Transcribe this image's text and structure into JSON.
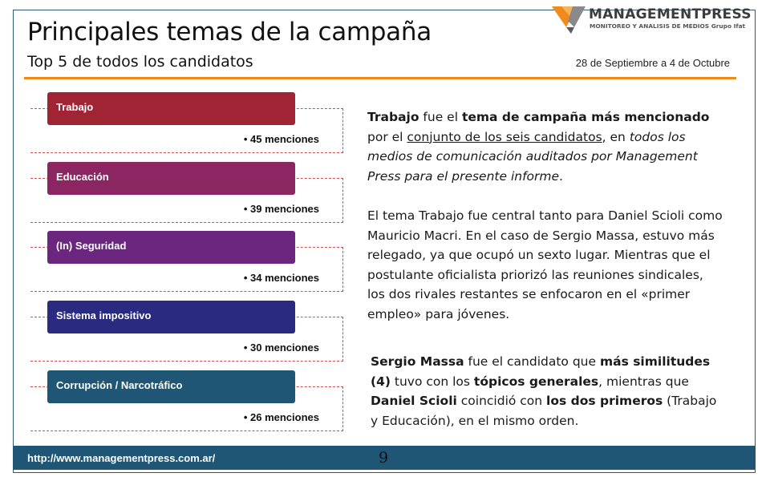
{
  "header": {
    "title": "Principales temas de la campaña",
    "subtitle": "Top 5 de todos los candidatos",
    "date_range": "28 de Septiembre a 4 de Octubre"
  },
  "logo": {
    "name": "MANAGEMENTPRESS",
    "tagline": "MONITOREO Y ANALISIS DE MEDIOS Grupo Ifat"
  },
  "topics": [
    {
      "label": "Trabajo",
      "count": "• 45 menciones",
      "color": "#a12434"
    },
    {
      "label": "Educación",
      "count": "• 39 menciones",
      "color": "#8c2662"
    },
    {
      "label": "(In) Seguridad",
      "count": "• 34 menciones",
      "color": "#6b2680"
    },
    {
      "label": "Sistema impositivo",
      "count": "• 30 menciones",
      "color": "#2a2a80"
    },
    {
      "label": "Corrupción  / Narcotráfico",
      "count": "• 26 menciones",
      "color": "#1f5676"
    }
  ],
  "paragraphs": {
    "p1": {
      "a": "Trabajo",
      "b": " fue el ",
      "c": "tema de campaña más mencionado",
      "d": " por el ",
      "e": "conjunto de los seis candidatos",
      "f": ", en ",
      "g": "todos los medios de comunicación auditados por Management Press para el presente informe",
      "h": "."
    },
    "p2": "El tema Trabajo fue central tanto para Daniel Scioli como Mauricio Macri. En el caso de Sergio Massa, estuvo más relegado, ya que ocupó un sexto lugar. Mientras que el postulante oficialista priorizó las reuniones sindicales, los dos rivales restantes se enfocaron en el «primer empleo» para jóvenes.",
    "p3": {
      "a": "Sergio Massa",
      "b": " fue el candidato que ",
      "c": "más similitudes (4)",
      "d": " tuvo con los ",
      "e": "tópicos generales",
      "f": ", mientras que ",
      "g": "Daniel Scioli",
      "h": " coincidió con ",
      "i": "los dos primeros",
      "j": " (Trabajo y Educación), en el mismo orden."
    }
  },
  "footer": {
    "url": "http://www.managementpress.com.ar/",
    "page_number": "9"
  },
  "colors": {
    "accent_orange": "#ef8a17",
    "footer_blue": "#1f5676"
  }
}
